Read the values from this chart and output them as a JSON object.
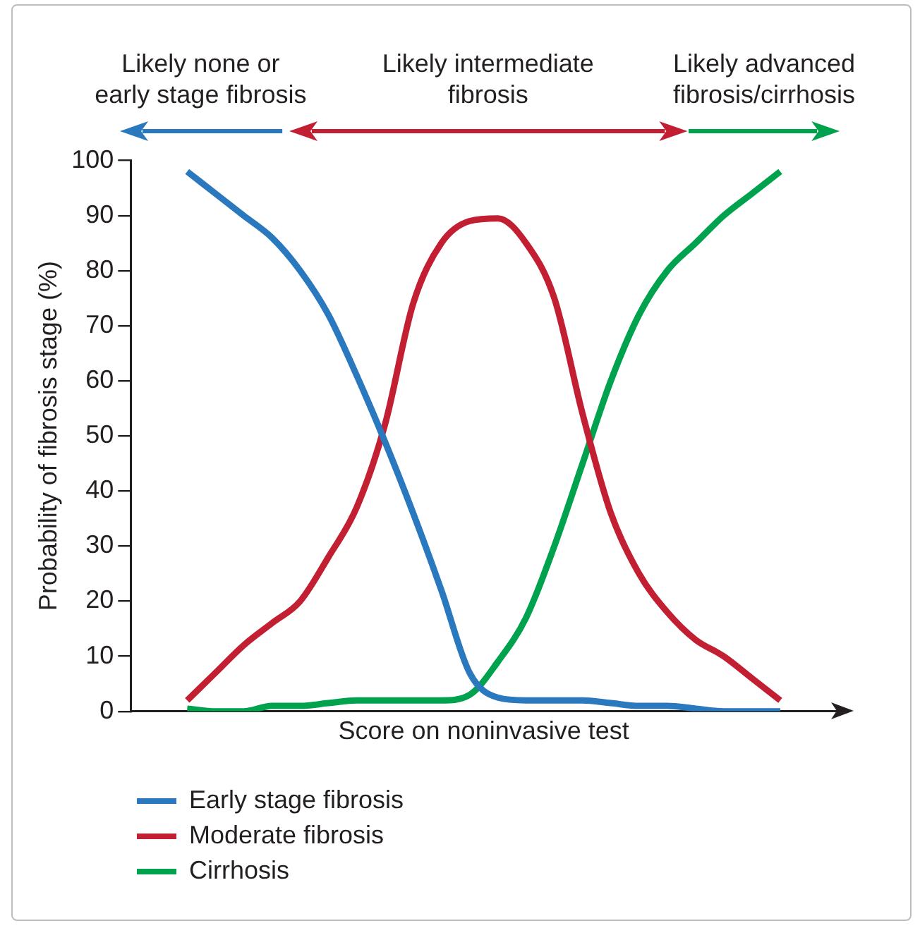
{
  "chart_data": {
    "type": "line",
    "xlabel": "Score on noninvasive test",
    "ylabel": "Probability of fibrosis stage (%)",
    "annotations": [
      "Likely none or\nearly stage fibrosis",
      "Likely intermediate\nfibrosis",
      "Likely advanced\nfibrosis/cirrhosis"
    ],
    "categories": [
      null,
      null,
      null,
      null,
      null,
      null,
      null,
      null,
      null,
      null,
      null,
      null,
      null,
      null,
      null,
      null,
      null,
      null,
      null,
      null,
      null,
      null
    ],
    "series": [
      {
        "name": "Early stage fibrosis",
        "color": "#2a78bd",
        "values": [
          98,
          94,
          90,
          86,
          80,
          72,
          61,
          49,
          36,
          22,
          7,
          2.5,
          2,
          2,
          2,
          1.5,
          1,
          1,
          0.5,
          0,
          0,
          0
        ]
      },
      {
        "name": "Moderate fibrosis",
        "color": "#c21f33",
        "values": [
          2,
          7,
          12,
          16,
          20,
          28,
          37,
          52,
          74,
          85,
          89,
          89.5,
          85,
          75,
          54,
          36,
          25,
          18,
          13,
          10,
          6,
          2
        ]
      },
      {
        "name": "Cirrhosis",
        "color": "#00a24d",
        "values": [
          0.5,
          0,
          0,
          1,
          1,
          1.5,
          2,
          2,
          2,
          2,
          3,
          9,
          17,
          30,
          45,
          60,
          72,
          80,
          85,
          90,
          94,
          98
        ]
      }
    ],
    "ylim": [
      0,
      100
    ],
    "yticks": [
      0,
      10,
      20,
      30,
      40,
      50,
      60,
      70,
      80,
      90,
      100
    ],
    "grid": false,
    "legend": "bottom",
    "tick_labels": "y",
    "marker": "none",
    "line_style": "solid"
  }
}
